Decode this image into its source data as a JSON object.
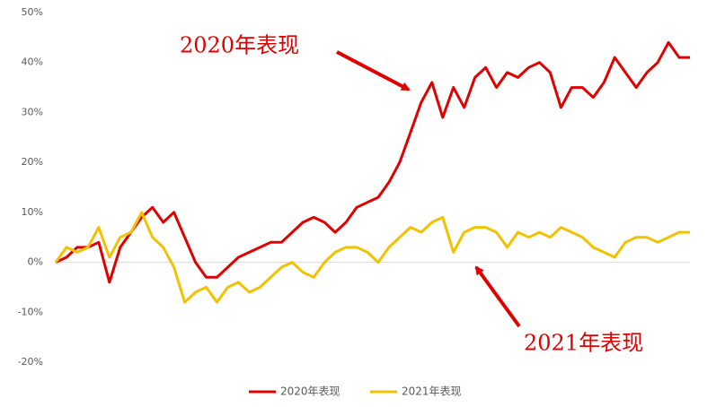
{
  "chart_data": {
    "type": "line",
    "ylim": [
      -20,
      50
    ],
    "yticks": [
      {
        "value": -20,
        "label": "-20%"
      },
      {
        "value": -10,
        "label": "-10%"
      },
      {
        "value": 0,
        "label": "0%"
      },
      {
        "value": 10,
        "label": "10%"
      },
      {
        "value": 20,
        "label": "20%"
      },
      {
        "value": 30,
        "label": "30%"
      },
      {
        "value": 40,
        "label": "40%"
      },
      {
        "value": 50,
        "label": "50%"
      }
    ],
    "legend": "bottom",
    "annotations": [
      "2020年表现",
      "2021年表现"
    ],
    "series": [
      {
        "name": "2020年表现",
        "color": "#e00000",
        "values": [
          0,
          1,
          3,
          3,
          4,
          -4,
          3,
          6,
          9,
          11,
          8,
          10,
          5,
          0,
          -3,
          -3,
          -1,
          1,
          2,
          3,
          4,
          4,
          6,
          8,
          9,
          8,
          6,
          8,
          11,
          12,
          13,
          16,
          20,
          26,
          32,
          36,
          29,
          35,
          31,
          37,
          39,
          35,
          38,
          37,
          39,
          40,
          38,
          31,
          35,
          35,
          33,
          36,
          41,
          38,
          35,
          38,
          40,
          44,
          41,
          41
        ]
      },
      {
        "name": "2021年表现",
        "color": "#f2c100",
        "values": [
          0,
          3,
          2,
          3,
          7,
          1,
          5,
          6,
          10,
          5,
          3,
          -1,
          -8,
          -6,
          -5,
          -8,
          -5,
          -4,
          -6,
          -5,
          -3,
          -1,
          0,
          -2,
          -3,
          0,
          2,
          3,
          3,
          2,
          0,
          3,
          5,
          7,
          6,
          8,
          9,
          2,
          6,
          7,
          7,
          6,
          3,
          6,
          5,
          6,
          5,
          7,
          6,
          5,
          3,
          2,
          1,
          4,
          5,
          5,
          4,
          5,
          6,
          6
        ]
      }
    ]
  }
}
